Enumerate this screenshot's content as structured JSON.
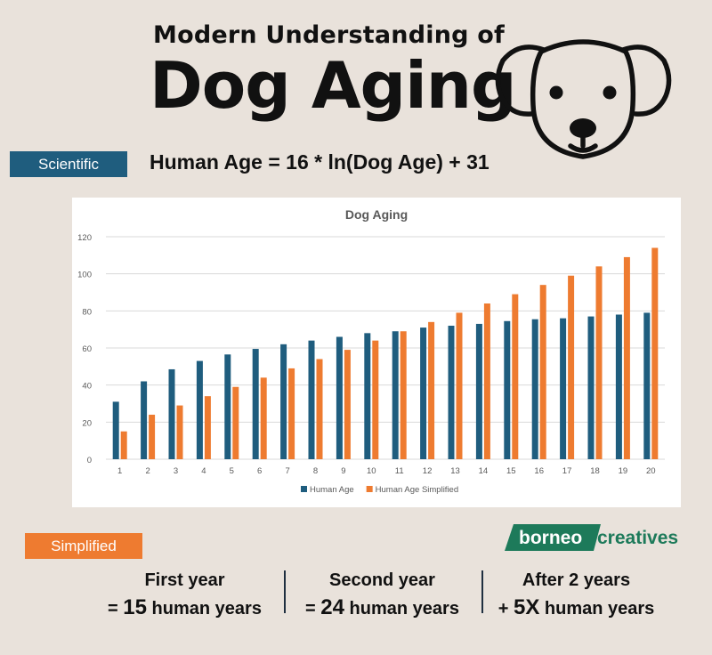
{
  "header": {
    "subtitle": "Modern Understanding of",
    "title": "Dog Aging"
  },
  "scientific": {
    "badge": "Scientific",
    "formula": "Human Age = 16 * ln(Dog Age) + 31"
  },
  "simplified": {
    "badge": "Simplified",
    "stats": [
      {
        "head": "First year",
        "prefix": "= ",
        "value": "15",
        "unit": " human years"
      },
      {
        "head": "Second year",
        "prefix": "= ",
        "value": "24",
        "unit": " human years"
      },
      {
        "head": "After 2 years",
        "prefix": "+ ",
        "value": "5X",
        "unit": " human years"
      }
    ]
  },
  "logo": {
    "part1": "borneo",
    "part2": "creatives"
  },
  "colors": {
    "primary": "#1f5d7e",
    "accent": "#ee7b30",
    "background": "#e9e2db",
    "logo_green": "#1d7a5a"
  },
  "icons": [
    "dog-face-icon"
  ],
  "chart_data": {
    "type": "bar",
    "title": "Dog Aging",
    "xlabel": "",
    "ylabel": "",
    "ylim": [
      0,
      120
    ],
    "yticks": [
      0,
      20,
      40,
      60,
      80,
      100,
      120
    ],
    "grid": true,
    "legend_position": "bottom",
    "categories": [
      "1",
      "2",
      "3",
      "4",
      "5",
      "6",
      "7",
      "8",
      "9",
      "10",
      "11",
      "12",
      "13",
      "14",
      "15",
      "16",
      "17",
      "18",
      "19",
      "20"
    ],
    "series": [
      {
        "name": "Human Age",
        "color": "#1f5d7e",
        "values": [
          31,
          42,
          48.5,
          53,
          56.5,
          59.5,
          62,
          64,
          66,
          68,
          69,
          71,
          72,
          73,
          74.5,
          75.5,
          76,
          77,
          78,
          79
        ]
      },
      {
        "name": "Human Age Simplified",
        "color": "#ee7b30",
        "values": [
          15,
          24,
          29,
          34,
          39,
          44,
          49,
          54,
          59,
          64,
          69,
          74,
          79,
          84,
          89,
          94,
          99,
          104,
          109,
          114
        ]
      }
    ]
  }
}
